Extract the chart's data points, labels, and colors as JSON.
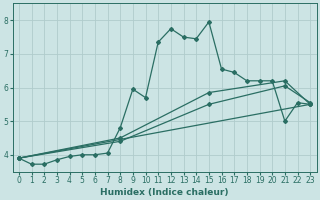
{
  "xlabel": "Humidex (Indice chaleur)",
  "bg_color": "#cce4e4",
  "line_color": "#2a6e63",
  "grid_color": "#b0cccc",
  "xlim": [
    -0.5,
    23.5
  ],
  "ylim": [
    3.5,
    8.5
  ],
  "yticks": [
    4,
    5,
    6,
    7,
    8
  ],
  "xticks": [
    0,
    1,
    2,
    3,
    4,
    5,
    6,
    7,
    8,
    9,
    10,
    11,
    12,
    13,
    14,
    15,
    16,
    17,
    18,
    19,
    20,
    21,
    22,
    23
  ],
  "lines": [
    {
      "x": [
        0,
        1,
        2,
        3,
        4,
        5,
        6,
        7,
        8,
        9,
        10,
        11,
        12,
        13,
        14,
        15,
        16,
        17,
        18,
        19,
        20,
        21,
        22,
        23
      ],
      "y": [
        3.9,
        3.72,
        3.72,
        3.85,
        3.95,
        4.0,
        4.0,
        4.05,
        4.8,
        5.95,
        5.7,
        7.35,
        7.75,
        7.5,
        7.45,
        7.95,
        6.55,
        6.45,
        6.2,
        6.2,
        6.2,
        5.0,
        5.55,
        5.5
      ]
    },
    {
      "x": [
        0,
        8,
        15,
        21,
        23
      ],
      "y": [
        3.9,
        4.5,
        5.85,
        6.2,
        5.5
      ]
    },
    {
      "x": [
        0,
        8,
        15,
        21,
        23
      ],
      "y": [
        3.9,
        4.4,
        5.5,
        6.05,
        5.55
      ]
    },
    {
      "x": [
        0,
        23
      ],
      "y": [
        3.9,
        5.5
      ]
    }
  ]
}
